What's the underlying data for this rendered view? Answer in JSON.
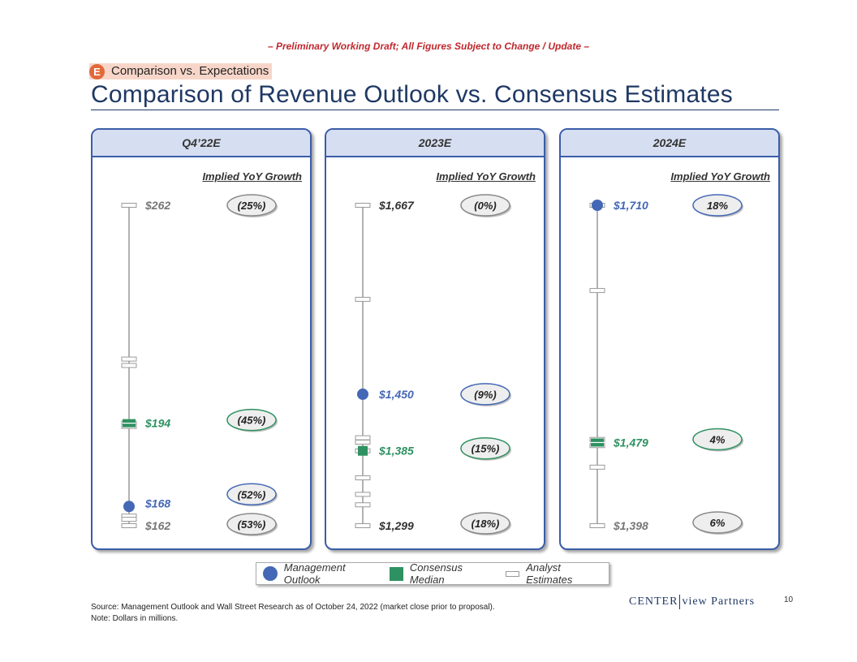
{
  "draft_banner": "– Preliminary Working Draft; All Figures Subject to Change / Update –",
  "section": {
    "letter": "E",
    "label": "Comparison vs. Expectations"
  },
  "title": "Comparison of Revenue Outlook vs. Consensus Estimates",
  "colors": {
    "management": "#4468b5",
    "consensus": "#2e9161",
    "analyst": "#999999",
    "grey_text": "#777777"
  },
  "chart_data": [
    {
      "type": "range",
      "period": "Q4’22E",
      "growth_header": "Implied YoY Growth",
      "ylim": [
        162,
        262
      ],
      "analyst_estimates": [
        262,
        214,
        212,
        194,
        193,
        165,
        164,
        162
      ],
      "labels": [
        {
          "value": 262,
          "text": "$262",
          "kind": "high",
          "growth": "(25%)"
        },
        {
          "value": 194,
          "text": "$194",
          "kind": "consensus",
          "growth": "(45%)"
        },
        {
          "value": 168,
          "text": "$168",
          "kind": "management",
          "growth": "(52%)"
        },
        {
          "value": 162,
          "text": "$162",
          "kind": "low",
          "growth": "(53%)"
        }
      ]
    },
    {
      "type": "range",
      "period": "2023E",
      "growth_header": "Implied YoY Growth",
      "ylim": [
        1299,
        1667
      ],
      "analyst_estimates": [
        1667,
        1559,
        1400,
        1395,
        1385,
        1354,
        1335,
        1323,
        1299
      ],
      "labels": [
        {
          "value": 1667,
          "text": "$1,667",
          "kind": "high",
          "growth": "(0%)"
        },
        {
          "value": 1450,
          "text": "$1,450",
          "kind": "management",
          "growth": "(9%)"
        },
        {
          "value": 1385,
          "text": "$1,385",
          "kind": "consensus",
          "growth": "(15%)"
        },
        {
          "value": 1299,
          "text": "$1,299",
          "kind": "low",
          "growth": "(18%)"
        }
      ]
    },
    {
      "type": "range",
      "period": "2024E",
      "growth_header": "Implied YoY Growth",
      "ylim": [
        1398,
        1710
      ],
      "analyst_estimates": [
        1710,
        1627,
        1482,
        1476,
        1455,
        1398
      ],
      "labels": [
        {
          "value": 1710,
          "text": "$1,710",
          "kind": "management",
          "growth": "18%"
        },
        {
          "value": 1479,
          "text": "$1,479",
          "kind": "consensus",
          "growth": "4%"
        },
        {
          "value": 1398,
          "text": "$1,398",
          "kind": "low",
          "growth": "6%"
        }
      ]
    }
  ],
  "legend": {
    "management": "Management Outlook",
    "consensus": "Consensus Median",
    "analyst": "Analyst Estimates"
  },
  "logo": {
    "left": "Center",
    "right": "view Partners"
  },
  "page_number": "10",
  "source": "Source:  Management Outlook and Wall Street Research as of October 24, 2022 (market close prior to proposal).",
  "note": "Note:    Dollars in millions."
}
